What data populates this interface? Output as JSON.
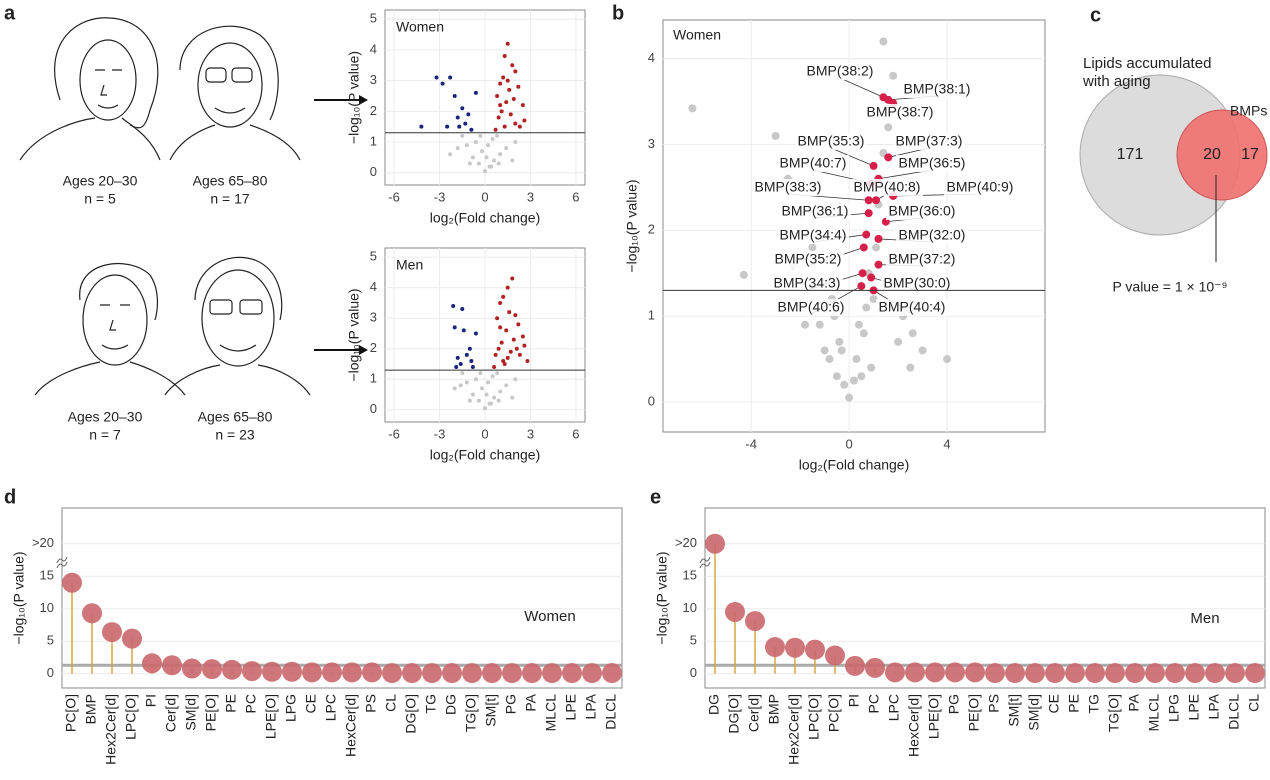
{
  "panel_letters": [
    "a",
    "b",
    "c",
    "d",
    "e"
  ],
  "panel_a": {
    "groups": [
      {
        "age": "Ages 20–30",
        "n": "n = 5"
      },
      {
        "age": "Ages 65–80",
        "n": "n = 17"
      },
      {
        "age": "Ages 20–30",
        "n": "n = 7"
      },
      {
        "age": "Ages 65–80",
        "n": "n = 23"
      }
    ]
  },
  "chart_data": [
    {
      "type": "scatter",
      "annotation": "Women",
      "xlabel": "log₂(Fold change)",
      "ylabel": "−log₁₀(P value)",
      "xlim": [
        -6.6,
        6.6
      ],
      "ylim": [
        -0.4,
        5.3
      ],
      "xticks": [
        -6,
        -3,
        0,
        3,
        6
      ],
      "yticks": [
        0,
        1,
        2,
        3,
        4,
        5
      ],
      "grid": true,
      "threshold": 1.3,
      "series": [
        {
          "color": "#c8c8c8",
          "x": [
            -2.3,
            -1.8,
            -1.2,
            -0.8,
            -0.4,
            0,
            0.3,
            0.6,
            1.0,
            -0.6,
            -0.2,
            0.2,
            0.5,
            0.8,
            -1.0,
            1.4,
            2.0,
            -1.5,
            0.1,
            -0.3,
            0.4,
            0.9,
            1.8
          ],
          "values": [
            0.6,
            0.8,
            0.9,
            0.5,
            0.3,
            0.05,
            0.2,
            0.4,
            0.6,
            1.0,
            0.7,
            0.9,
            1.1,
            1.2,
            0.3,
            0.8,
            1.0,
            1.2,
            0.5,
            1.2,
            0.2,
            0.3,
            0.4
          ]
        },
        {
          "color": "#1a237e",
          "x": [
            -4.2,
            -3.2,
            -2.8,
            -2.5,
            -2.3,
            -2.0,
            -1.8,
            -1.5,
            -1.3,
            -1.1,
            -0.9,
            -0.6,
            -1.7
          ],
          "values": [
            1.5,
            3.1,
            2.9,
            1.5,
            3.1,
            2.5,
            1.8,
            2.1,
            1.6,
            1.9,
            1.4,
            2.6,
            1.5
          ]
        },
        {
          "color": "#b22222",
          "x": [
            1.5,
            1.3,
            1.8,
            2.0,
            1.2,
            1.0,
            0.8,
            1.6,
            2.2,
            2.5,
            1.4,
            1.1,
            0.9,
            1.7,
            2.0,
            2.6,
            1.3,
            0.7,
            1.9,
            1.5,
            1.0,
            2.3
          ],
          "values": [
            4.2,
            3.8,
            3.5,
            3.3,
            3.1,
            2.9,
            2.5,
            2.7,
            2.8,
            2.2,
            2.3,
            2.0,
            1.8,
            1.9,
            1.6,
            1.7,
            1.5,
            1.4,
            2.4,
            3.0,
            2.2,
            1.5
          ]
        }
      ]
    },
    {
      "type": "scatter",
      "annotation": "Men",
      "xlabel": "log₂(Fold change)",
      "ylabel": "−log₁₀(P value)",
      "xlim": [
        -6.6,
        6.6
      ],
      "ylim": [
        -0.4,
        5.3
      ],
      "xticks": [
        -6,
        -3,
        0,
        3,
        6
      ],
      "yticks": [
        0,
        1,
        2,
        3,
        4,
        5
      ],
      "grid": true,
      "threshold": 1.3,
      "series": [
        {
          "color": "#c8c8c8",
          "x": [
            -2.0,
            -1.6,
            -1.2,
            -0.8,
            -0.4,
            0,
            0.3,
            0.6,
            1.0,
            -0.6,
            -0.2,
            0.2,
            0.5,
            0.8,
            -1.0,
            1.4,
            2.0,
            -1.5,
            0.1,
            -0.3,
            0.4,
            0.9,
            1.8
          ],
          "values": [
            0.7,
            0.8,
            0.9,
            0.5,
            0.3,
            0.05,
            0.2,
            0.4,
            0.6,
            1.0,
            0.7,
            0.9,
            1.1,
            1.2,
            0.3,
            0.8,
            1.0,
            1.2,
            0.5,
            1.2,
            0.2,
            0.3,
            0.4
          ]
        },
        {
          "color": "#1a237e",
          "x": [
            -2.1,
            -2.0,
            -1.8,
            -1.6,
            -1.4,
            -1.2,
            -1.0,
            -0.8,
            -0.6,
            -1.9,
            -1.5,
            -0.9
          ],
          "values": [
            3.4,
            2.7,
            1.7,
            1.5,
            2.6,
            1.8,
            2.0,
            1.4,
            2.5,
            1.4,
            3.3,
            1.6
          ]
        },
        {
          "color": "#b22222",
          "x": [
            1.8,
            1.5,
            1.2,
            1.0,
            0.8,
            1.6,
            2.0,
            2.2,
            2.5,
            1.4,
            1.1,
            0.9,
            1.7,
            2.3,
            2.8,
            1.3,
            0.6,
            1.9,
            1.5,
            1.0,
            2.1,
            1.2,
            0.7,
            2.6
          ],
          "values": [
            4.3,
            4.0,
            3.7,
            3.5,
            3.0,
            3.2,
            3.1,
            2.8,
            2.4,
            2.6,
            2.2,
            2.0,
            1.9,
            1.8,
            1.6,
            1.5,
            1.4,
            2.3,
            1.7,
            2.7,
            2.0,
            1.6,
            1.8,
            2.1
          ]
        }
      ]
    },
    {
      "type": "scatter",
      "annotation": "Women",
      "xlabel": "log₂(Fold change)",
      "ylabel": "−log₁₀(P value)",
      "xlim": [
        -7.6,
        8
      ],
      "ylim": [
        -0.35,
        4.45
      ],
      "xticks": [
        -4,
        0,
        4
      ],
      "yticks": [
        0,
        1,
        2,
        3,
        4
      ],
      "grid": true,
      "threshold": 1.3,
      "series": [
        {
          "color": "#c8c8c8",
          "x": [
            -6.4,
            -4.3,
            -3.0,
            -2.5,
            -2.0,
            -1.5,
            -1.0,
            -0.6,
            -0.3,
            0,
            0.3,
            0.6,
            1.0,
            1.4,
            1.8,
            2.2,
            2.6,
            3.0,
            -0.8,
            -1.2,
            0.8,
            1.2,
            1.4,
            2.0,
            -1.8,
            -2.3,
            1.6,
            0.5,
            -0.5,
            2.5,
            4.0,
            -0.2,
            0.2,
            -0.4,
            0.4,
            0.7,
            -0.7,
            1.1,
            -1.0,
            0.9
          ],
          "values": [
            3.42,
            1.48,
            3.1,
            2.6,
            2.2,
            1.8,
            1.4,
            1.0,
            0.6,
            0.05,
            0.5,
            0.8,
            1.2,
            4.2,
            3.8,
            1.0,
            0.8,
            0.6,
            0.5,
            0.9,
            1.5,
            2.3,
            2.9,
            0.7,
            0.9,
            1.6,
            3.2,
            0.3,
            0.3,
            0.4,
            0.5,
            0.2,
            0.25,
            0.7,
            0.9,
            1.1,
            1.2,
            1.8,
            0.6,
            0.4
          ]
        },
        {
          "color": "#d6204a",
          "labels": [
            "BMP(38:2)",
            "BMP(38:1)",
            "BMP(38:7)",
            "BMP(35:3)",
            "BMP(37:3)",
            "BMP(40:7)",
            "BMP(36:5)",
            "BMP(38:3)",
            "BMP(40:8)",
            "BMP(40:9)",
            "BMP(36:1)",
            "BMP(36:0)",
            "BMP(34:4)",
            "BMP(32:0)",
            "BMP(35:2)",
            "BMP(37:2)",
            "BMP(34:3)",
            "BMP(30:0)",
            "BMP(40:6)",
            "BMP(40:4)"
          ],
          "x": [
            1.4,
            1.6,
            1.8,
            1.0,
            1.6,
            0.9,
            1.2,
            0.8,
            1.1,
            1.8,
            0.8,
            1.5,
            0.7,
            1.2,
            0.6,
            1.2,
            0.55,
            0.9,
            0.5,
            1.0
          ],
          "values": [
            3.55,
            3.52,
            3.48,
            2.75,
            2.85,
            2.55,
            2.6,
            2.35,
            2.35,
            2.4,
            2.2,
            2.1,
            1.95,
            1.9,
            1.8,
            1.6,
            1.5,
            1.45,
            1.35,
            1.3
          ]
        }
      ]
    },
    {
      "type": "venn",
      "sets": [
        "Lipids accumulated with aging",
        "BMPs"
      ],
      "values": [
        171,
        20,
        17
      ],
      "annotation": "P value = 1 × 10⁻⁹"
    },
    {
      "type": "lollipop",
      "annotation": "Women",
      "ylabel": "−log₁₀(P value)",
      "ylim": [
        -2.2,
        25.5
      ],
      "yticks": [
        0,
        5,
        10,
        15,
        {
          "value": 20,
          "label": ">20"
        }
      ],
      "grid": true,
      "threshold": 1.3,
      "color": "#c9676b",
      "stem_color": "#d9a640",
      "categories": [
        "PC[O]",
        "BMP",
        "Hex2Cer[d]",
        "LPC[O]",
        "PI",
        "Cer[d]",
        "SM[d]",
        "PE[O]",
        "PE",
        "PC",
        "LPE[O]",
        "LPG",
        "CE",
        "LPC",
        "HexCer[d]",
        "PS",
        "CL",
        "DG[O]",
        "TG",
        "DG",
        "TG[O]",
        "SM[t]",
        "PG",
        "PA",
        "MLCL",
        "LPE",
        "LPA",
        "DLCL"
      ],
      "values": [
        14,
        9.3,
        6.4,
        5.4,
        1.6,
        1.3,
        0.8,
        0.7,
        0.6,
        0.4,
        0.3,
        0.3,
        0.2,
        0.2,
        0.2,
        0.2,
        0.1,
        0.1,
        0.1,
        0.1,
        0.1,
        0.1,
        0.1,
        0.1,
        0.1,
        0.1,
        0.1,
        0.1
      ]
    },
    {
      "type": "lollipop",
      "annotation": "Men",
      "ylabel": "−log₁₀(P value)",
      "ylim": [
        -2.2,
        25.5
      ],
      "yticks": [
        0,
        5,
        10,
        15,
        {
          "value": 20,
          "label": ">20"
        }
      ],
      "grid": true,
      "threshold": 1.3,
      "color": "#c9676b",
      "stem_color": "#d9a640",
      "categories": [
        "DG",
        "DG[O]",
        "Cer[d]",
        "BMP",
        "Hex2Cer[d]",
        "LPC[O]",
        "PC[O]",
        "PI",
        "PC",
        "LPC",
        "HexCer[d]",
        "LPE[O]",
        "PG",
        "PE[O]",
        "PS",
        "SM[t]",
        "SM[d]",
        "CE",
        "PE",
        "TG",
        "TG[O]",
        "PA",
        "MLCL",
        "LPG",
        "LPE",
        "LPA",
        "DLCL",
        "CL"
      ],
      "values": [
        20,
        9.5,
        8.1,
        4.1,
        4.0,
        3.7,
        2.8,
        1.2,
        0.9,
        0.2,
        0.2,
        0.2,
        0.2,
        0.2,
        0.1,
        0.1,
        0.1,
        0.1,
        0.1,
        0.1,
        0.1,
        0.1,
        0.1,
        0.1,
        0.1,
        0.1,
        0.1,
        0.1
      ]
    }
  ]
}
